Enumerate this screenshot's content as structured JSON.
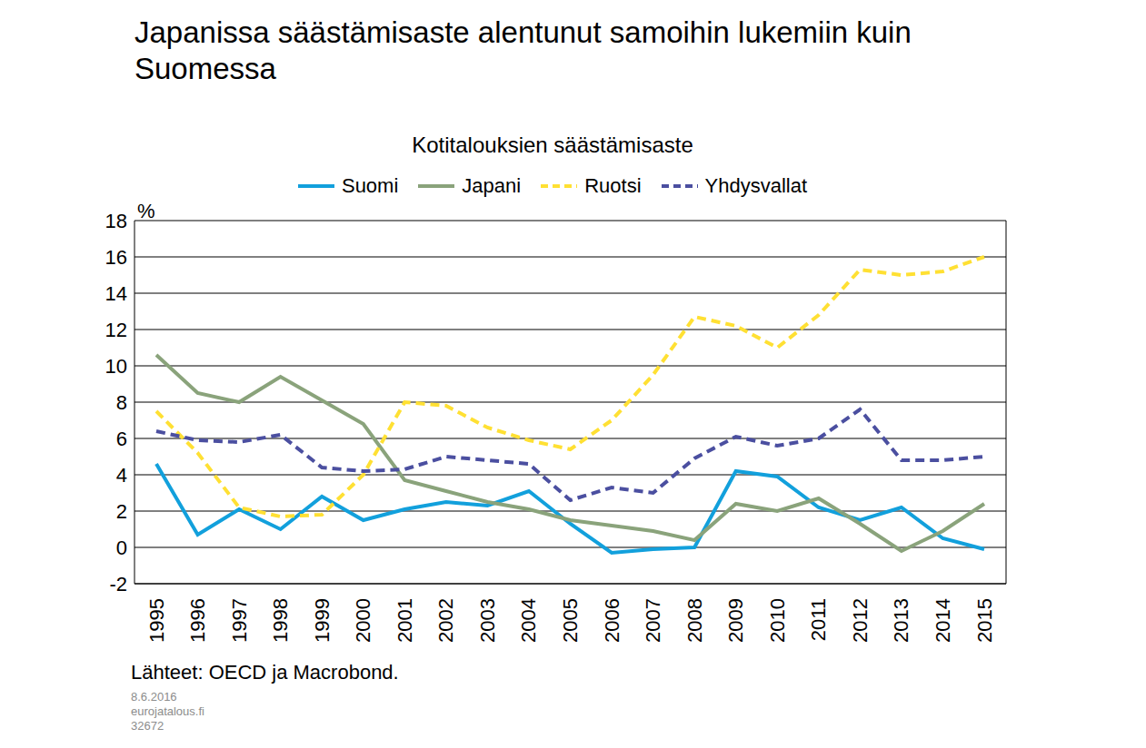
{
  "chart_data": {
    "type": "line",
    "title": "Japanissa säästämisaste alentunut samoihin lukemiin kuin Suomessa",
    "subtitle": "Kotitalouksien säästämisaste",
    "y_label": "%",
    "source": "Lähteet: OECD ja Macrobond.",
    "footer": [
      "8.6.2016",
      "eurojatalous.fi",
      "32672"
    ],
    "categories": [
      "1995",
      "1996",
      "1997",
      "1998",
      "1999",
      "2000",
      "2001",
      "2002",
      "2003",
      "2004",
      "2005",
      "2006",
      "2007",
      "2008",
      "2009",
      "2010",
      "2011",
      "2012",
      "2013",
      "2014",
      "2015"
    ],
    "series": [
      {
        "name": "Suomi",
        "color": "#12a0dc",
        "line_style": "solid",
        "values": [
          4.6,
          0.7,
          2.1,
          1.0,
          2.8,
          1.5,
          2.1,
          2.5,
          2.3,
          3.1,
          1.3,
          -0.3,
          -0.1,
          0.0,
          4.2,
          3.9,
          2.2,
          1.5,
          2.2,
          0.5,
          -0.1
        ]
      },
      {
        "name": "Japani",
        "color": "#8aa37b",
        "line_style": "solid",
        "values": [
          10.6,
          8.5,
          8.0,
          9.4,
          8.1,
          6.8,
          3.7,
          3.1,
          2.5,
          2.1,
          1.5,
          1.2,
          0.9,
          0.4,
          2.4,
          2.0,
          2.7,
          1.3,
          -0.2,
          0.9,
          2.4
        ]
      },
      {
        "name": "Ruotsi",
        "color": "#ffe033",
        "line_style": "dashed",
        "values": [
          7.5,
          5.2,
          2.2,
          1.7,
          1.8,
          4.0,
          8.0,
          7.8,
          6.6,
          5.9,
          5.4,
          7.0,
          9.5,
          12.7,
          12.2,
          11.0,
          12.8,
          15.3,
          15.0,
          15.2,
          16.0
        ]
      },
      {
        "name": "Yhdysvallat",
        "color": "#4b4fa0",
        "line_style": "dashed",
        "values": [
          6.4,
          5.9,
          5.8,
          6.2,
          4.4,
          4.2,
          4.3,
          5.0,
          4.8,
          4.6,
          2.6,
          3.3,
          3.0,
          4.9,
          6.1,
          5.6,
          6.0,
          7.6,
          4.8,
          4.8,
          5.0
        ]
      }
    ],
    "ylim": [
      -2,
      18
    ],
    "yticks": [
      -2,
      0,
      2,
      4,
      6,
      8,
      10,
      12,
      14,
      16,
      18
    ],
    "grid": true,
    "legend": "top"
  }
}
